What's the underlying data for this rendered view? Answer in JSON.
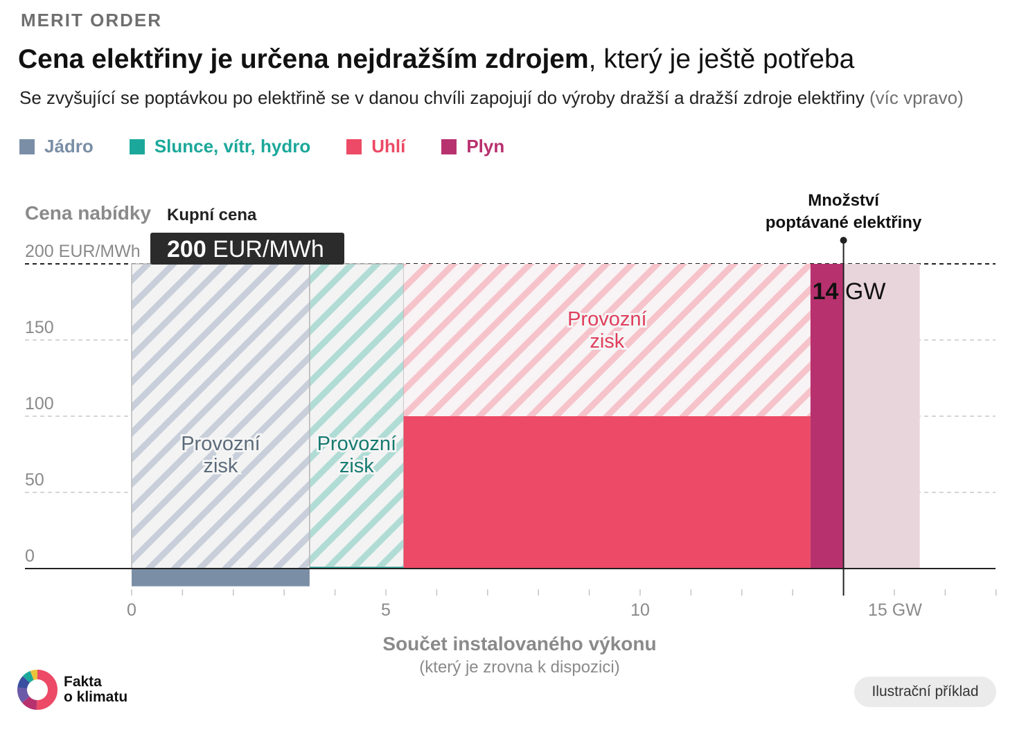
{
  "kicker": "MERIT ORDER",
  "title_bold": "Cena elektřiny je určena nejdražším zdrojem",
  "title_rest": ", který je ještě potřeba",
  "subtitle_main": "Se zvyšující se poptávkou po elektřině se v danou chvíli zapojují do výroby dražší a dražší zdroje elektřiny",
  "subtitle_muted": " (víc vpravo)",
  "legend": [
    {
      "label": "Jádro",
      "color": "#7a8ea6"
    },
    {
      "label": "Slunce, vítr, hydro",
      "color": "#1ba89a"
    },
    {
      "label": "Uhlí",
      "color": "#ec4a66"
    },
    {
      "label": "Plyn",
      "color": "#b8316f"
    }
  ],
  "chart_data": {
    "type": "bar",
    "ylabel": "Cena nabídky",
    "xlabel": "Součet instalovaného výkonu",
    "xlabel_sub": "(který je zrovna k dispozici)",
    "xlim": [
      0,
      17
    ],
    "ylim": [
      0,
      200
    ],
    "y_ticks": [
      {
        "value": 0,
        "label": "0"
      },
      {
        "value": 50,
        "label": "50"
      },
      {
        "value": 100,
        "label": "100"
      },
      {
        "value": 150,
        "label": "150"
      },
      {
        "value": 200,
        "label": "200 EUR/MWh"
      }
    ],
    "x_ticks": [
      {
        "value": 0,
        "label": "0"
      },
      {
        "value": 5,
        "label": "5"
      },
      {
        "value": 10,
        "label": "10"
      },
      {
        "value": 15,
        "label": "15 GW"
      }
    ],
    "x_minor_step": 1,
    "sources": [
      {
        "name": "Jádro",
        "start": 0,
        "end": 3.5,
        "price": -3,
        "color": "#7a8ea6",
        "hatch": "#c8cfda",
        "profit_label": "Provozní zisk",
        "label_color": "#5c6b7a"
      },
      {
        "name": "Slunce, vítr, hydro",
        "start": 3.5,
        "end": 5.35,
        "price": 1,
        "color": "#1ba89a",
        "hatch": "#b0dcd5",
        "profit_label": "Provozní zisk",
        "label_color": "#167a70"
      },
      {
        "name": "Uhlí",
        "start": 5.35,
        "end": 13.35,
        "price": 100,
        "color": "#ec4a66",
        "hatch": "#f6c3cb",
        "profit_label": "Provozní zisk",
        "label_color": "#e03e5c"
      },
      {
        "name": "Plyn",
        "start": 13.35,
        "end": 14.0,
        "price": 200,
        "color": "#b8316f",
        "hatch": "",
        "profit_label": "",
        "label_color": ""
      },
      {
        "name": "Plyn",
        "start": 14.0,
        "end": 15.5,
        "price": 200,
        "color": "#e8d5dc",
        "hatch": "",
        "profit_label": "",
        "label_color": ""
      }
    ],
    "demand": {
      "value": 14,
      "value_label": "14",
      "unit": " GW",
      "label_line1": "Množství",
      "label_line2": "poptávané elektřiny"
    },
    "purchase_price": {
      "title": "Kupní cena",
      "value_label": "200",
      "unit": " EUR/MWh",
      "value": 200
    }
  },
  "footer": {
    "logo_line1": "Fakta",
    "logo_line2": "o klimatu",
    "badge": "Ilustrační příklad"
  }
}
